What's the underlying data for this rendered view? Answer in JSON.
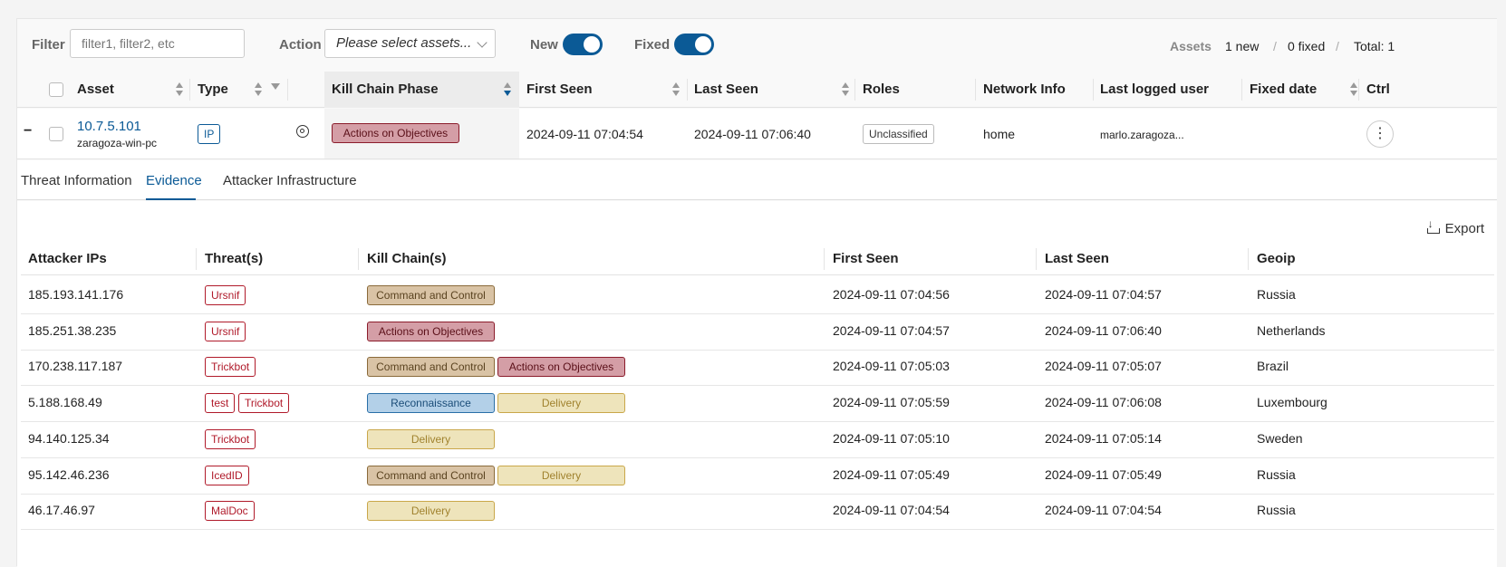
{
  "filter": {
    "label": "Filter",
    "placeholder": "filter1, filter2, etc"
  },
  "action": {
    "label": "Action",
    "value": "Please select assets..."
  },
  "toggles": {
    "new_label": "New",
    "fixed_label": "Fixed"
  },
  "stats": {
    "label": "Assets",
    "new": "1 new",
    "sep1": "/",
    "fixed": "0 fixed",
    "sep2": "/",
    "total": "Total: 1"
  },
  "columns": {
    "asset": "Asset",
    "type": "Type",
    "kill_chain": "Kill Chain Phase",
    "first_seen": "First Seen",
    "last_seen": "Last Seen",
    "roles": "Roles",
    "network": "Network Info",
    "last_user": "Last logged user",
    "fixed_date": "Fixed date",
    "ctrl": "Ctrl"
  },
  "asset_row": {
    "collapse": "−",
    "ip": "10.7.5.101",
    "host": "zaragoza-win-pc",
    "type": "IP",
    "kill_chain": "Actions on Objectives",
    "first_seen": "2024-09-11 07:04:54",
    "last_seen": "2024-09-11 07:06:40",
    "role": "Unclassified",
    "network": "home",
    "last_user": "marlo.zaragoza...",
    "kebab": "⋮"
  },
  "tabs": [
    "Threat Information",
    "Evidence",
    "Attacker Infrastructure"
  ],
  "export_label": "Export",
  "evidence_columns": {
    "attacker_ips": "Attacker IPs",
    "threats": "Threat(s)",
    "kill_chains": "Kill Chain(s)",
    "first_seen": "First Seen",
    "last_seen": "Last Seen",
    "geoip": "Geoip"
  },
  "evidence_rows": [
    {
      "ip": "185.193.141.176",
      "threats": [
        "Ursnif"
      ],
      "kill_chains": [
        "Command and Control"
      ],
      "first_seen": "2024-09-11 07:04:56",
      "last_seen": "2024-09-11 07:04:57",
      "geoip": "Russia"
    },
    {
      "ip": "185.251.38.235",
      "threats": [
        "Ursnif"
      ],
      "kill_chains": [
        "Actions on Objectives"
      ],
      "first_seen": "2024-09-11 07:04:57",
      "last_seen": "2024-09-11 07:06:40",
      "geoip": "Netherlands"
    },
    {
      "ip": "170.238.117.187",
      "threats": [
        "Trickbot"
      ],
      "kill_chains": [
        "Command and Control",
        "Actions on Objectives"
      ],
      "first_seen": "2024-09-11 07:05:03",
      "last_seen": "2024-09-11 07:05:07",
      "geoip": "Brazil"
    },
    {
      "ip": "5.188.168.49",
      "threats": [
        "test",
        "Trickbot"
      ],
      "kill_chains": [
        "Reconnaissance",
        "Delivery"
      ],
      "first_seen": "2024-09-11 07:05:59",
      "last_seen": "2024-09-11 07:06:08",
      "geoip": "Luxembourg"
    },
    {
      "ip": "94.140.125.34",
      "threats": [
        "Trickbot"
      ],
      "kill_chains": [
        "Delivery"
      ],
      "first_seen": "2024-09-11 07:05:10",
      "last_seen": "2024-09-11 07:05:14",
      "geoip": "Sweden"
    },
    {
      "ip": "95.142.46.236",
      "threats": [
        "IcedID"
      ],
      "kill_chains": [
        "Command and Control",
        "Delivery"
      ],
      "first_seen": "2024-09-11 07:05:49",
      "last_seen": "2024-09-11 07:05:49",
      "geoip": "Russia"
    },
    {
      "ip": "46.17.46.97",
      "threats": [
        "MalDoc"
      ],
      "kill_chains": [
        "Delivery"
      ],
      "first_seen": "2024-09-11 07:04:54",
      "last_seen": "2024-09-11 07:04:54",
      "geoip": "Russia"
    }
  ]
}
